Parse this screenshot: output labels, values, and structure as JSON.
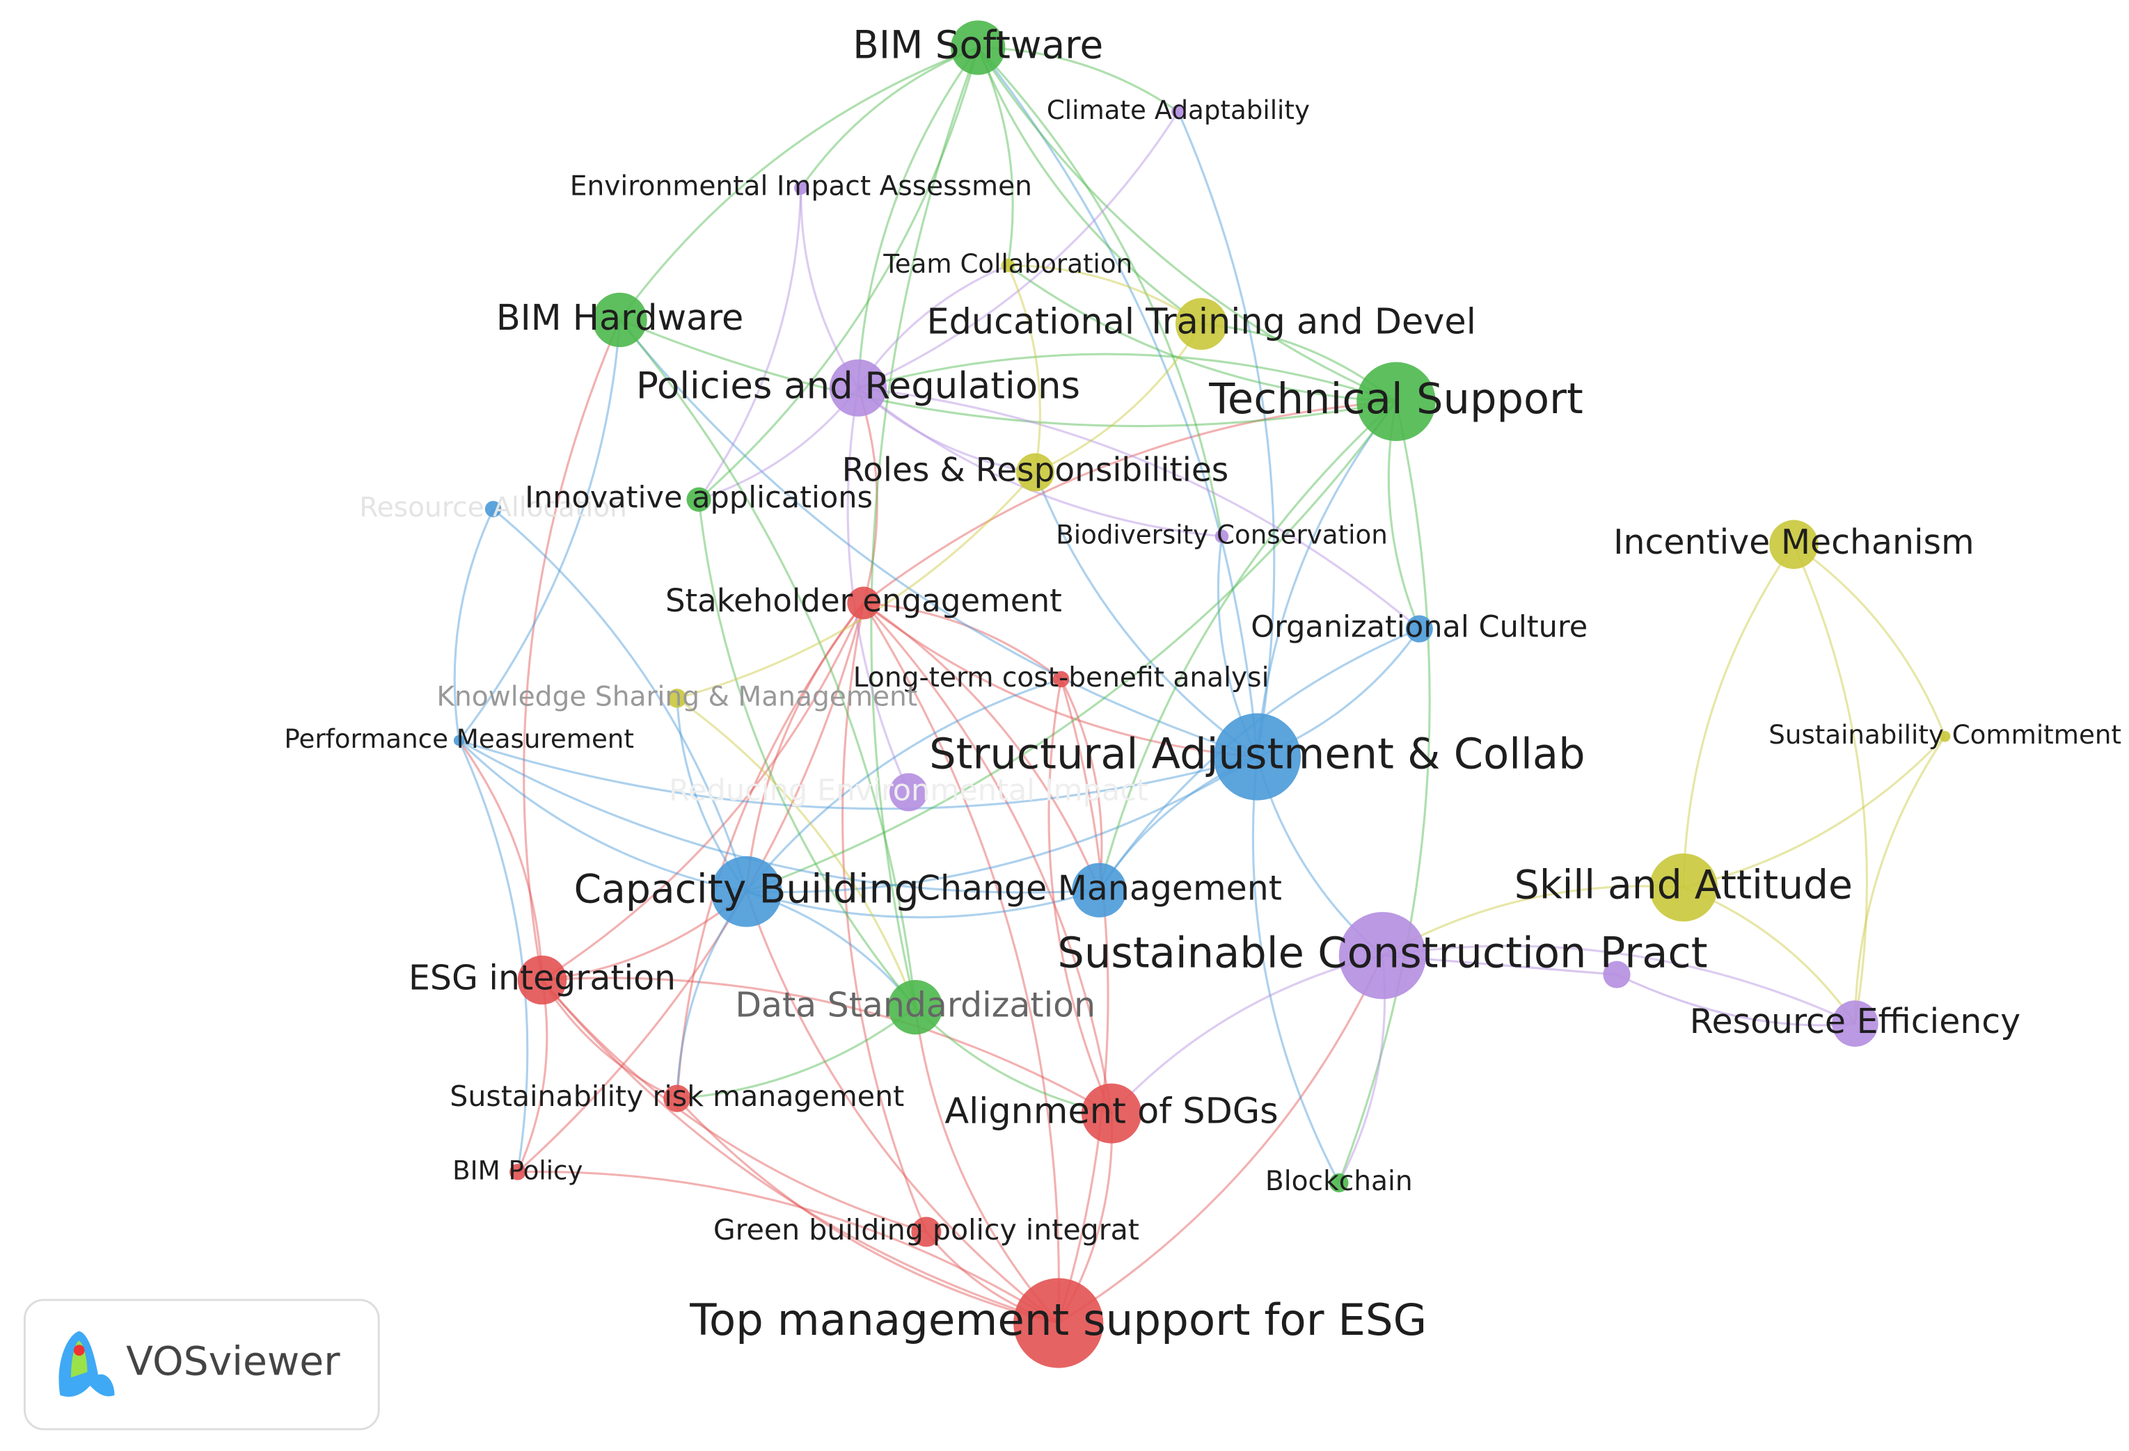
{
  "nodes": [
    {
      "label": "BIM Software"
    },
    {
      "label": "Climate Adaptability"
    },
    {
      "label": "Environmental Impact Assessmen"
    },
    {
      "label": "Team Collaboration"
    },
    {
      "label": "Educational Training and Devel"
    },
    {
      "label": "BIM Hardware"
    },
    {
      "label": "Policies and Regulations"
    },
    {
      "label": "Technical Support"
    },
    {
      "label": "Roles & Responsibilities"
    },
    {
      "label": "Resource Allocation"
    },
    {
      "label": "Innovative applications"
    },
    {
      "label": "Biodiversity Conservation"
    },
    {
      "label": "Incentive Mechanism"
    },
    {
      "label": "Stakeholder engagement"
    },
    {
      "label": "Organizational Culture"
    },
    {
      "label": "Long-term cost-benefit analysi"
    },
    {
      "label": "Knowledge Sharing & Management"
    },
    {
      "label": "Performance Measurement"
    },
    {
      "label": "Sustainability Commitment"
    },
    {
      "label": "Structural Adjustment & Collab"
    },
    {
      "label": "Reducing Environmental Impact"
    },
    {
      "label": "Capacity Building"
    },
    {
      "label": "Change Management"
    },
    {
      "label": "Skill and Attitude"
    },
    {
      "label": "Sustainable Construction Pract"
    },
    {
      "label": "ESG integration"
    },
    {
      "label": "Data Standardization"
    },
    {
      "label": "Resource Efficiency"
    },
    {
      "label": "Sustainability risk management"
    },
    {
      "label": "Alignment of SDGs"
    },
    {
      "label": "BIM Policy"
    },
    {
      "label": "Blockchain"
    },
    {
      "label": "Green building policy integrat"
    },
    {
      "label": "Top management support for ESG"
    }
  ],
  "logo": {
    "text": "VOSviewer"
  }
}
